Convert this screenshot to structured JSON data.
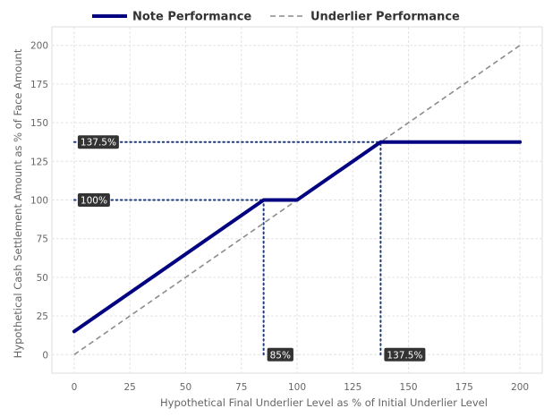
{
  "chart_data": {
    "type": "line",
    "xlabel": "Hypothetical Final Underlier Level as % of Initial Underlier Level",
    "ylabel": "Hypothetical Cash Settlement Amount as % of Face Amount",
    "xlim": [
      -10,
      210
    ],
    "ylim": [
      -12,
      212
    ],
    "xticks": [
      0,
      25,
      50,
      75,
      100,
      125,
      150,
      175,
      200
    ],
    "yticks": [
      0,
      25,
      50,
      75,
      100,
      125,
      150,
      175,
      200
    ],
    "grid": true,
    "legend_position": "top",
    "series": [
      {
        "name": "Note Performance",
        "color": "#000080",
        "style": "solid",
        "x": [
          0,
          85,
          100,
          137.5,
          200
        ],
        "y": [
          15,
          100,
          100,
          137.5,
          137.5
        ]
      },
      {
        "name": "Underlier Performance",
        "color": "#8c8c8c",
        "style": "dashed",
        "x": [
          0,
          200
        ],
        "y": [
          0,
          200
        ]
      }
    ],
    "reference_lines": [
      {
        "color": "#1f3a7a",
        "x": [
          0,
          137.5
        ],
        "y": [
          137.5,
          137.5
        ]
      },
      {
        "color": "#1f3a7a",
        "x": [
          0,
          85
        ],
        "y": [
          100,
          100
        ]
      },
      {
        "color": "#1f3a7a",
        "x": [
          85,
          85
        ],
        "y": [
          0,
          100
        ]
      },
      {
        "color": "#1f3a7a",
        "x": [
          137.5,
          137.5
        ],
        "y": [
          0,
          137.5
        ]
      }
    ],
    "annotations": [
      {
        "text": "137.5%",
        "x": 0,
        "y": 137.5
      },
      {
        "text": "100%",
        "x": 0,
        "y": 100
      },
      {
        "text": "85%",
        "x": 85,
        "y": 0
      },
      {
        "text": "137.5%",
        "x": 137.5,
        "y": 0
      }
    ]
  }
}
